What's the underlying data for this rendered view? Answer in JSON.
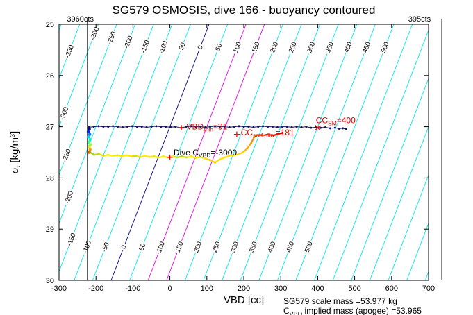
{
  "chart_data": {
    "type": "scatter",
    "title": "SG579 OSMOSIS, dive 166 - buoyancy contoured",
    "xlabel": "VBD [cc]",
    "ylabel": "sigma_t [kg/m^3]",
    "ylabel_parts": [
      {
        "t": "σ",
        "italic": true
      },
      {
        "t": "t",
        "sub": true
      },
      {
        "t": " [kg/m"
      },
      {
        "t": "3",
        "sup": true
      },
      {
        "t": "]"
      }
    ],
    "xlim": [
      -300,
      700
    ],
    "ylim": [
      25,
      30
    ],
    "y_axis_reversed": true,
    "x_ticks": [
      -300,
      -200,
      -100,
      0,
      100,
      200,
      300,
      400,
      500,
      600,
      700
    ],
    "y_ticks": [
      25,
      26,
      27,
      28,
      29,
      30
    ],
    "grid": false,
    "contours": {
      "model": "vbd = level - slope*(sigma_t - 27)",
      "level_min": -400,
      "level_max": 850,
      "level_step": 50,
      "slope_cc_per_sigma": 53,
      "default_color": "#00E8E8",
      "level_colors": {
        "0": "#000088",
        "100": "#E800E8",
        "150": "#E800E8"
      },
      "label_color": "#000000",
      "label_levels": [
        -350,
        -300,
        -250,
        -200,
        -150,
        -100,
        -50,
        0,
        50,
        100,
        150,
        200,
        250,
        300,
        350,
        400,
        450,
        500
      ]
    },
    "count_lines": [
      {
        "vbd": -223,
        "label": "3960cts",
        "label_dx": 9,
        "anchor": "end"
      },
      {
        "vbd": 736,
        "label": "395cts",
        "label_dx": -16,
        "anchor": "end"
      }
    ],
    "series": {
      "climb": {
        "name": "apogee/climb sigma_t vs VBD",
        "color": "#14145e",
        "points": [
          [
            -219,
            27.01
          ],
          [
            -206,
            27.0
          ],
          [
            -193,
            26.99
          ],
          [
            -180,
            27.0
          ],
          [
            -167,
            27.0
          ],
          [
            -154,
            26.99
          ],
          [
            -141,
            27.0
          ],
          [
            -128,
            27.01
          ],
          [
            -115,
            27.0
          ],
          [
            -102,
            26.99
          ],
          [
            -89,
            27.0
          ],
          [
            -76,
            27.0
          ],
          [
            -63,
            27.01
          ],
          [
            -50,
            27.0
          ],
          [
            -37,
            26.99
          ],
          [
            -24,
            27.0
          ],
          [
            -11,
            27.0
          ],
          [
            2,
            27.01
          ],
          [
            15,
            27.0
          ],
          [
            31,
            27.02
          ],
          [
            44,
            27.0
          ],
          [
            57,
            26.99
          ],
          [
            70,
            27.0
          ],
          [
            83,
            27.0
          ],
          [
            96,
            27.01
          ],
          [
            109,
            27.0
          ],
          [
            122,
            26.99
          ],
          [
            135,
            27.0
          ],
          [
            148,
            27.0
          ],
          [
            161,
            27.01
          ],
          [
            174,
            27.0
          ],
          [
            187,
            26.99
          ],
          [
            200,
            27.0
          ],
          [
            213,
            27.0
          ],
          [
            226,
            27.01
          ],
          [
            239,
            27.0
          ],
          [
            252,
            26.99
          ],
          [
            265,
            27.0
          ],
          [
            278,
            27.0
          ],
          [
            291,
            27.01
          ],
          [
            304,
            27.0
          ],
          [
            317,
            27.0
          ],
          [
            330,
            27.01
          ],
          [
            343,
            27.0
          ],
          [
            356,
            27.01
          ],
          [
            369,
            27.0
          ],
          [
            382,
            27.02
          ],
          [
            395,
            27.01
          ],
          [
            408,
            27.02
          ],
          [
            421,
            27.01
          ],
          [
            434,
            27.03
          ],
          [
            447,
            27.02
          ],
          [
            458,
            27.04
          ],
          [
            468,
            27.03
          ],
          [
            476,
            27.05
          ]
        ]
      },
      "buoyancy_colored": {
        "name": "buoyancy-contoured points",
        "points": [
          [
            -218,
            27.05,
            "#000099"
          ],
          [
            -221,
            27.1,
            "#0022ff"
          ],
          [
            -217,
            27.15,
            "#0077ff"
          ],
          [
            -220,
            27.2,
            "#00ccff"
          ],
          [
            -216,
            27.25,
            "#00ffcc"
          ],
          [
            -219,
            27.3,
            "#44ff88"
          ],
          [
            -215,
            27.35,
            "#99ff33"
          ],
          [
            -218,
            27.4,
            "#eeee00"
          ],
          [
            -216,
            27.45,
            "#ff9900"
          ],
          [
            -219,
            27.5,
            "#ff3300"
          ]
        ]
      },
      "dive": {
        "name": "dive sigma_t vs VBD",
        "points": [
          [
            -216,
            27.5,
            "#88c400"
          ],
          [
            -205,
            27.55,
            "#a6d400"
          ],
          [
            -192,
            27.53,
            "#c4e000"
          ],
          [
            -180,
            27.57,
            "#e2e600"
          ],
          [
            -168,
            27.55,
            "#ffe900"
          ],
          [
            -155,
            27.57,
            "#ffee00"
          ],
          [
            -142,
            27.56,
            "#e8e800"
          ],
          [
            -130,
            27.58,
            "#ffe900"
          ],
          [
            -118,
            27.56,
            "#ffee00"
          ],
          [
            -105,
            27.58,
            "#ffe900"
          ],
          [
            -92,
            27.57,
            "#d2e200"
          ],
          [
            -80,
            27.59,
            "#ffe900"
          ],
          [
            -68,
            27.57,
            "#ffee00"
          ],
          [
            -55,
            27.59,
            "#ffe900"
          ],
          [
            -42,
            27.58,
            "#e8e800"
          ],
          [
            -30,
            27.6,
            "#ffe900"
          ],
          [
            -18,
            27.58,
            "#ffee00"
          ],
          [
            -5,
            27.6,
            "#ffe900"
          ],
          [
            8,
            27.58,
            "#ffee00"
          ],
          [
            20,
            27.6,
            "#d2e200"
          ],
          [
            32,
            27.58,
            "#aad800"
          ],
          [
            45,
            27.6,
            "#c8e000"
          ],
          [
            58,
            27.58,
            "#ffe900"
          ],
          [
            70,
            27.61,
            "#ffe900"
          ],
          [
            82,
            27.59,
            "#ffee00"
          ],
          [
            95,
            27.62,
            "#ffe200"
          ],
          [
            108,
            27.65,
            "#ffd900"
          ],
          [
            122,
            27.7,
            "#ffd000"
          ],
          [
            135,
            27.64,
            "#ffd900"
          ],
          [
            148,
            27.6,
            "#ffe200"
          ],
          [
            160,
            27.57,
            "#ffe900"
          ],
          [
            172,
            27.56,
            "#ffe200"
          ],
          [
            185,
            27.54,
            "#ffd900"
          ],
          [
            198,
            27.5,
            "#ffc800"
          ],
          [
            210,
            27.42,
            "#ffb200"
          ],
          [
            220,
            27.32,
            "#ffa000"
          ],
          [
            228,
            27.2,
            "#ff8a00"
          ],
          [
            238,
            27.16,
            "#ff7000"
          ],
          [
            252,
            27.17,
            "#ff5a00"
          ],
          [
            266,
            27.15,
            "#ff4000"
          ],
          [
            280,
            27.17,
            "#ff2a00"
          ],
          [
            294,
            27.14,
            "#f21200"
          ],
          [
            305,
            27.12,
            "#d40000"
          ]
        ]
      }
    },
    "markers": [
      {
        "shape": "plus",
        "vbd": 31,
        "sigma": 27.02,
        "color": "#ff0000",
        "name": "vbd-min-marker"
      },
      {
        "shape": "plus",
        "vbd": 0,
        "sigma": 27.6,
        "color": "#ff0000",
        "name": "dive-cvbd-marker"
      },
      {
        "shape": "plus",
        "vbd": 181,
        "sigma": 27.15,
        "color": "#ff0000",
        "name": "cc-surf-min-marker"
      },
      {
        "shape": "x",
        "vbd": 400,
        "sigma": 27.02,
        "color": "#ff0000",
        "name": "cc-sm-marker"
      }
    ],
    "annotations": [
      {
        "id": "vbd-min-label",
        "color": "#dd0000",
        "x_vbd": 45,
        "y_sigma": 27.05,
        "parts": [
          {
            "t": "VBD"
          },
          {
            "t": "min",
            "sub": true
          },
          {
            "t": "=31"
          }
        ]
      },
      {
        "id": "cc-surf-min-label",
        "color": "#dd0000",
        "x_vbd": 192,
        "y_sigma": 27.17,
        "parts": [
          {
            "t": "CC"
          },
          {
            "t": "surf min.",
            "sub": true
          },
          {
            "t": "=181"
          }
        ]
      },
      {
        "id": "cc-sm-label",
        "color": "#dd0000",
        "x_vbd": 395,
        "y_sigma": 26.93,
        "parts": [
          {
            "t": "CC"
          },
          {
            "t": "SM",
            "sub": true
          },
          {
            "t": "=400"
          }
        ]
      },
      {
        "id": "dive-cvbd-label",
        "color": "#000000",
        "x_vbd": 10,
        "y_sigma": 27.56,
        "parts": [
          {
            "t": "Dive C"
          },
          {
            "t": "VBD",
            "sub": true
          },
          {
            "t": "=-3000"
          }
        ]
      }
    ],
    "footer": {
      "line1": "SG579 scale mass =53.977 kg",
      "line2_prefix": "C",
      "line2_sub": "VBD",
      "line2_rest": " implied mass (apogee) =53.965"
    }
  }
}
